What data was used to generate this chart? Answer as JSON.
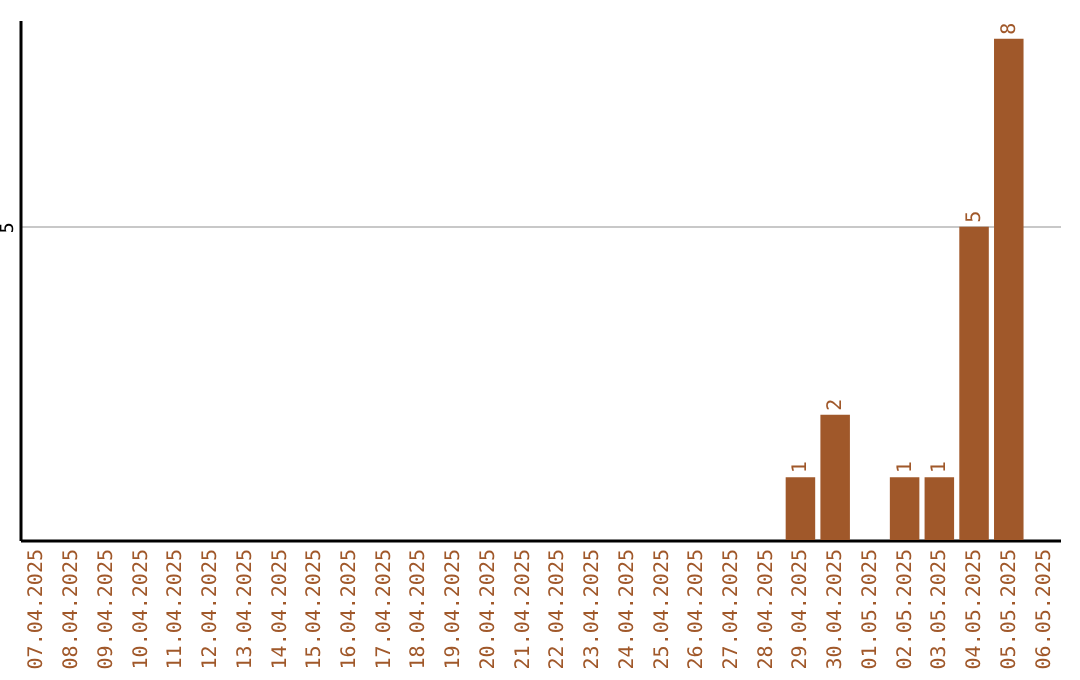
{
  "chart_data": {
    "type": "bar",
    "categories": [
      "07.04.2025",
      "08.04.2025",
      "09.04.2025",
      "10.04.2025",
      "11.04.2025",
      "12.04.2025",
      "13.04.2025",
      "14.04.2025",
      "15.04.2025",
      "16.04.2025",
      "17.04.2025",
      "18.04.2025",
      "19.04.2025",
      "20.04.2025",
      "21.04.2025",
      "22.04.2025",
      "23.04.2025",
      "24.04.2025",
      "25.04.2025",
      "26.04.2025",
      "27.04.2025",
      "28.04.2025",
      "29.04.2025",
      "30.04.2025",
      "01.05.2025",
      "02.05.2025",
      "03.05.2025",
      "04.05.2025",
      "05.05.2025",
      "06.05.2025"
    ],
    "values": [
      null,
      null,
      null,
      null,
      null,
      null,
      null,
      null,
      null,
      null,
      null,
      null,
      null,
      null,
      null,
      null,
      null,
      null,
      null,
      null,
      null,
      null,
      1,
      2,
      null,
      1,
      1,
      5,
      8,
      null
    ],
    "color": "#a0582a",
    "ylim": [
      0,
      8.3
    ],
    "yticks": [
      5
    ],
    "grid": "y",
    "data_labels": true
  }
}
